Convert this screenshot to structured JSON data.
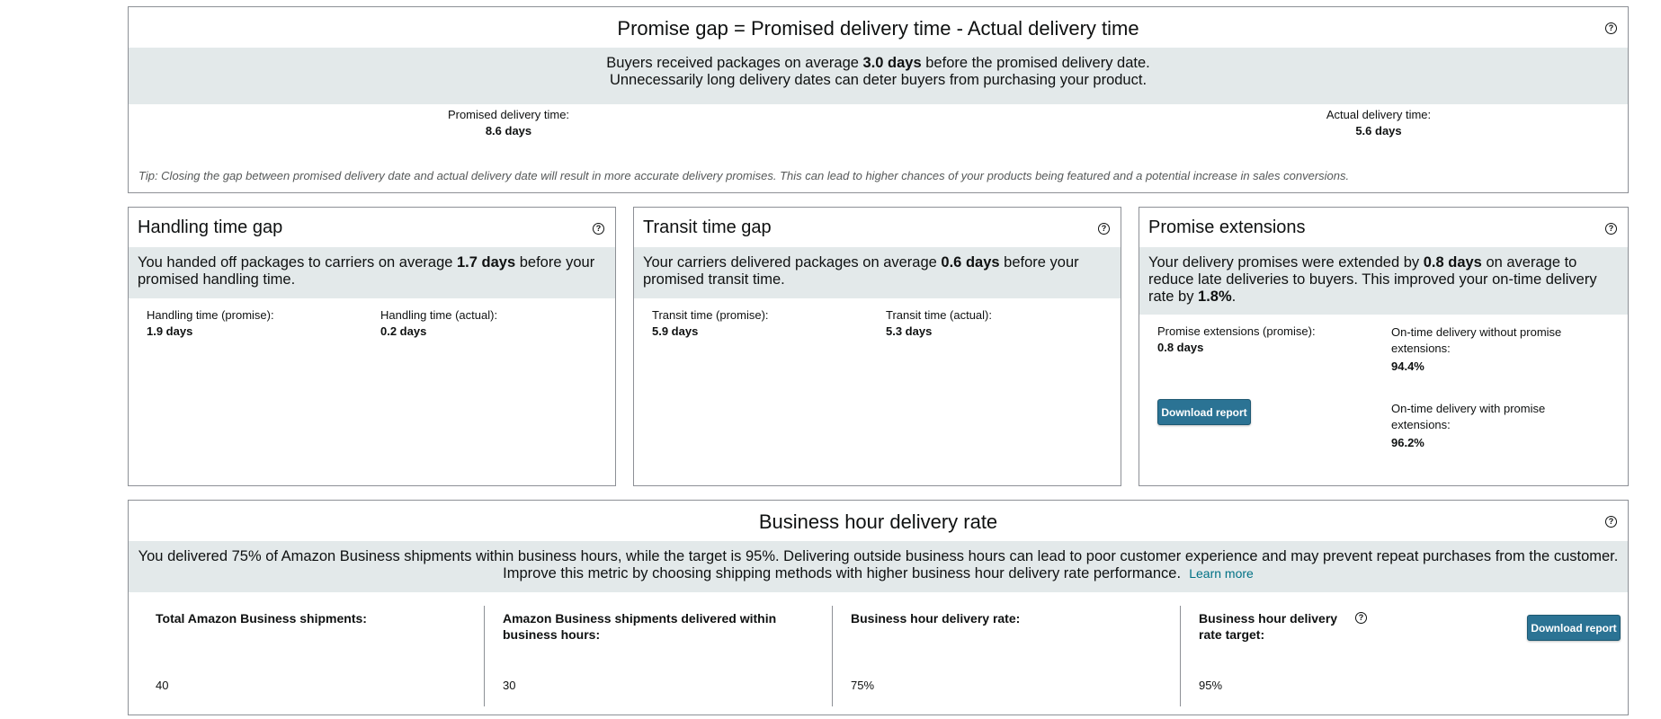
{
  "promise_gap": {
    "title": "Promise gap = Promised delivery time - Actual delivery time",
    "summary_pre": "Buyers received packages on average ",
    "summary_value": "3.0 days",
    "summary_post": " before the promised delivery date.",
    "summary_line2": "Unnecessarily long delivery dates can deter buyers from purchasing your product.",
    "promised_label": "Promised delivery time:",
    "promised_value": "8.6 days",
    "actual_label": "Actual delivery time:",
    "actual_value": "5.6 days",
    "tip": "Tip: Closing the gap between promised delivery date and actual delivery date will result in more accurate delivery promises. This can lead to higher chances of your products being featured and a potential increase in sales conversions."
  },
  "handling": {
    "title": "Handling time gap",
    "summary_pre": "You handed off packages to carriers on average ",
    "summary_value": "1.7 days",
    "summary_post": " before your promised handling time.",
    "promise_label": "Handling time (promise):",
    "promise_value": "1.9 days",
    "actual_label": "Handling time (actual):",
    "actual_value": "0.2 days"
  },
  "transit": {
    "title": "Transit time gap",
    "summary_pre": "Your carriers delivered packages on average ",
    "summary_value": "0.6 days",
    "summary_post": " before your promised transit time.",
    "promise_label": "Transit time (promise):",
    "promise_value": "5.9 days",
    "actual_label": "Transit time (actual):",
    "actual_value": "5.3 days"
  },
  "extensions": {
    "title": "Promise extensions",
    "summary_pre": "Your delivery promises were extended by ",
    "summary_value": "0.8 days",
    "summary_mid": " on average to reduce late deliveries to buyers. This improved your on-time delivery rate by ",
    "summary_value2": "1.8%",
    "summary_post": ".",
    "promise_label": "Promise extensions (promise):",
    "promise_value": "0.8 days",
    "without_label": "On-time delivery without promise extensions:",
    "without_value": "94.4%",
    "with_label": "On-time delivery with promise extensions:",
    "with_value": "96.2%",
    "download_label": "Download report"
  },
  "business": {
    "title": "Business hour delivery rate",
    "summary_line1": "You delivered 75% of Amazon Business shipments within business hours, while the target is 95%. Delivering outside business hours can lead to poor customer experience and may prevent repeat purchases from the customer.",
    "summary_line2": "Improve this metric by choosing shipping methods with higher business hour delivery rate performance.",
    "learn_more": "Learn more",
    "total_label": "Total Amazon Business shipments:",
    "total_value": "40",
    "within_label": "Amazon Business shipments delivered within business hours:",
    "within_value": "30",
    "rate_label": "Business hour delivery rate:",
    "rate_value": "75%",
    "target_label": "Business hour delivery rate target:",
    "target_value": "95%",
    "download_label": "Download report"
  },
  "icons": {
    "help": "?"
  }
}
